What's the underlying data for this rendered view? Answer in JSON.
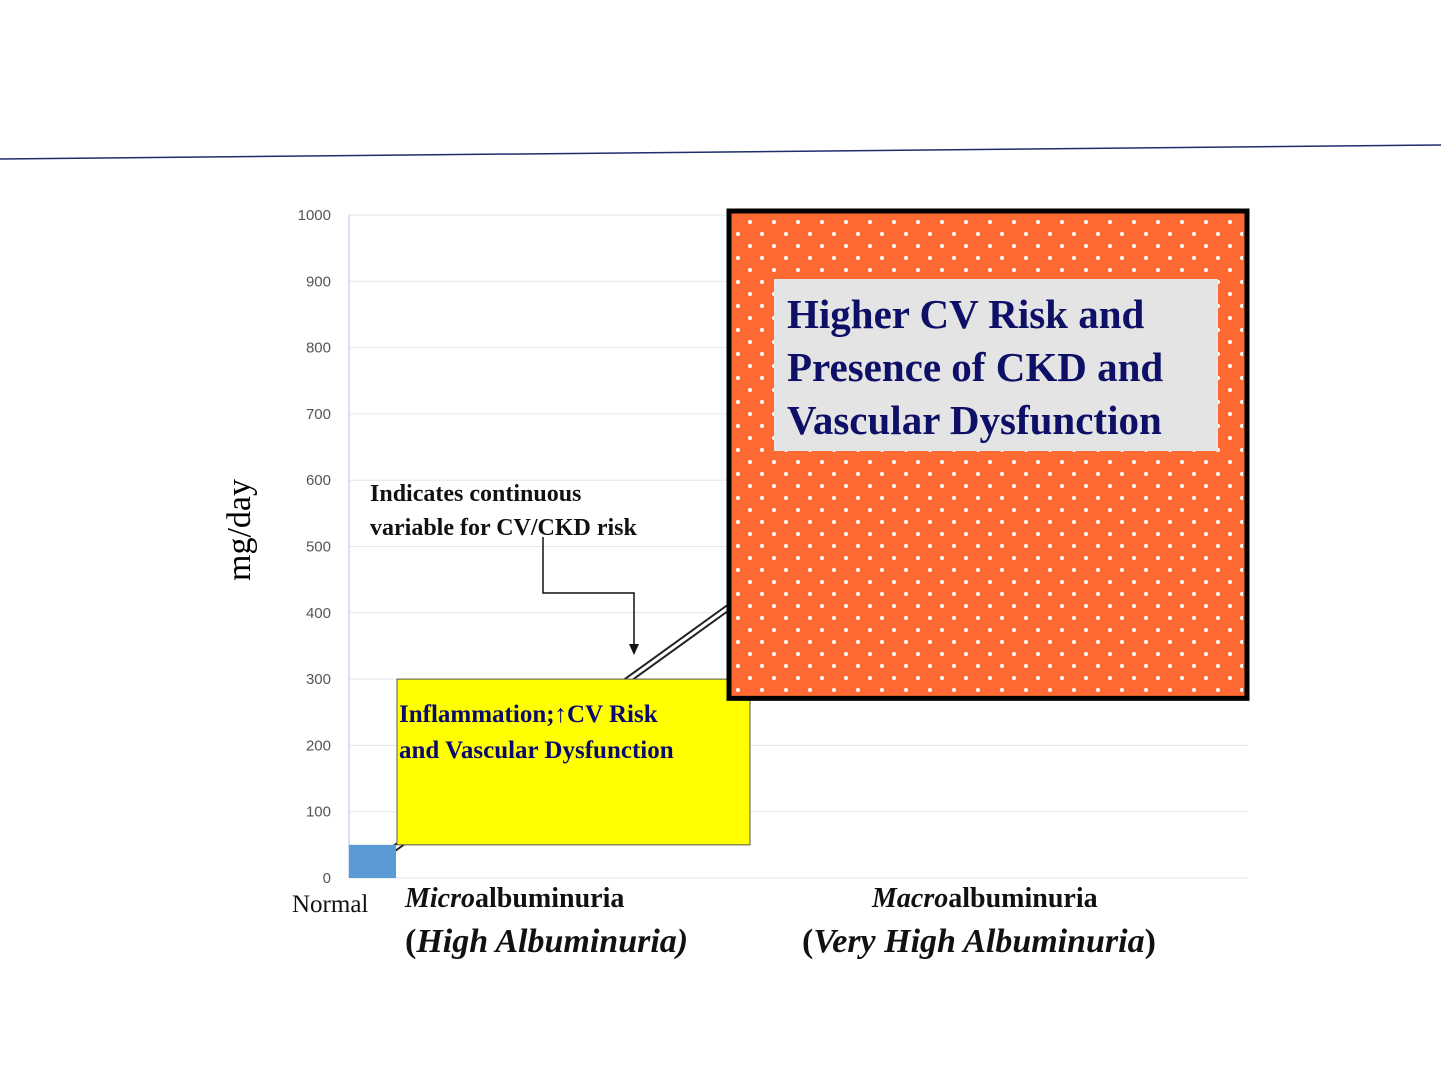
{
  "chart_data": {
    "type": "bar",
    "ylabel": "mg/day",
    "ylim": [
      0,
      1000
    ],
    "yticks": [
      "0",
      "100",
      "200",
      "300",
      "400",
      "500",
      "600",
      "700",
      "800",
      "900",
      "1000"
    ],
    "grid": true,
    "categories": [
      {
        "id": "normal",
        "label_parts": [
          {
            "text": "Normal",
            "italic": false,
            "bold": false
          }
        ],
        "sublabel_parts": [],
        "range": [
          0,
          50
        ],
        "color": "#5b9bd5"
      },
      {
        "id": "micro",
        "label_parts": [
          {
            "text": "Micro",
            "italic": true,
            "bold": true
          },
          {
            "text": "albuminuria",
            "italic": false,
            "bold": true
          }
        ],
        "sublabel_parts": [
          {
            "text": "(",
            "italic": false
          },
          {
            "text": "High Albuminuria)",
            "italic": true
          }
        ],
        "range": [
          50,
          300
        ],
        "color": "#ffff00"
      },
      {
        "id": "macro",
        "label_parts": [
          {
            "text": "Macro",
            "italic": true,
            "bold": true
          },
          {
            "text": "albuminuria",
            "italic": false,
            "bold": true
          }
        ],
        "sublabel_parts": [
          {
            "text": "(",
            "italic": false
          },
          {
            "text": "Very High Albuminuria",
            "italic": true
          },
          {
            "text": ")",
            "italic": false
          }
        ],
        "range": [
          280,
          1000
        ],
        "color": "#ff6a33"
      }
    ],
    "annotations": {
      "trend_note": [
        "Indicates continuous",
        "variable for CV/CKD risk"
      ],
      "micro_box_text": [
        "Inflammation;↑CV  Risk",
        "and Vascular Dysfunction"
      ],
      "macro_box_text": [
        "Higher CV Risk and",
        "Presence of CKD and",
        "Vascular Dysfunction"
      ]
    }
  },
  "colors": {
    "header_rule": "#1f2d6b",
    "gridline": "#e6e6e6",
    "y_axis_line": "#c9d7ee",
    "macro_border": "#000000",
    "macro_text_bg": "#e4e4e4",
    "dot": "#ffffff"
  }
}
